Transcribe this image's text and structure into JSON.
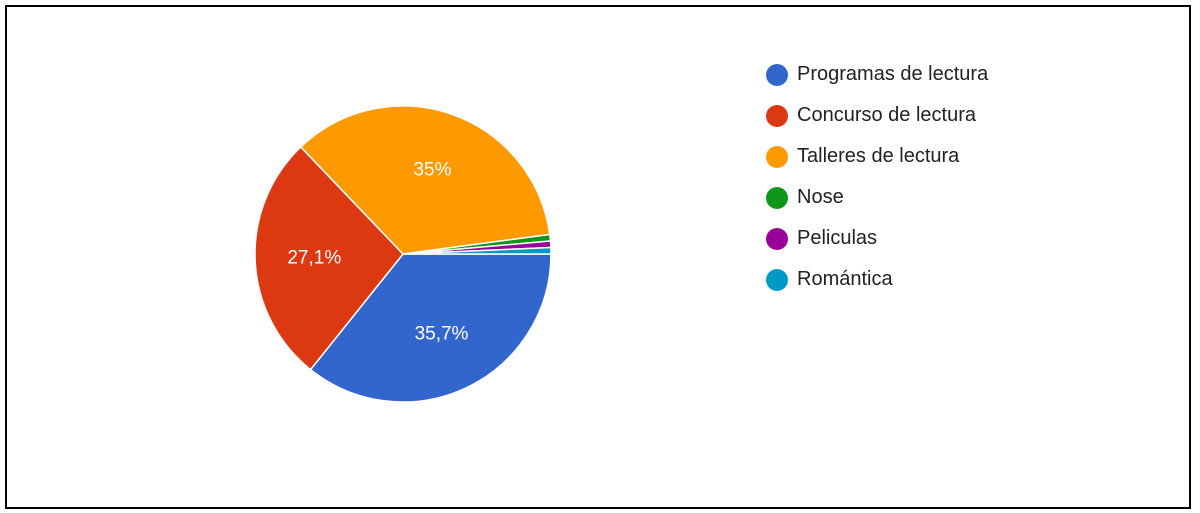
{
  "chart_data": {
    "type": "pie",
    "title": "",
    "legend_position": "right",
    "slices": [
      {
        "label": "Programas de lectura",
        "value": 35.7,
        "display": "35,7%",
        "color": "#3366cc"
      },
      {
        "label": "Concurso de lectura",
        "value": 27.1,
        "display": "27,1%",
        "color": "#dc3912"
      },
      {
        "label": "Talleres de lectura",
        "value": 35.0,
        "display": "35%",
        "color": "#ff9900"
      },
      {
        "label": "Nose",
        "value": 0.7,
        "display": "",
        "color": "#109618"
      },
      {
        "label": "Peliculas",
        "value": 0.7,
        "display": "",
        "color": "#990099"
      },
      {
        "label": "Romántica",
        "value": 0.7,
        "display": "",
        "color": "#0099c6"
      }
    ]
  }
}
